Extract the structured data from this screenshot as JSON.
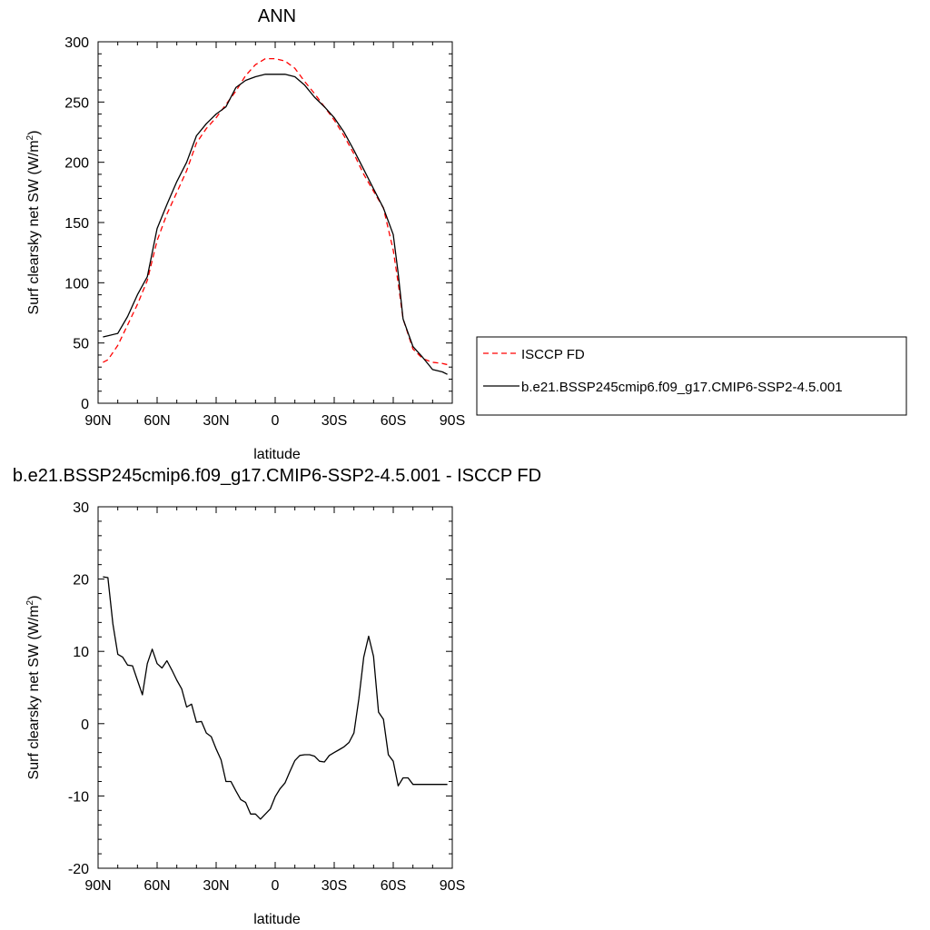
{
  "chart_data": [
    {
      "type": "line",
      "title": "ANN",
      "xlabel": "latitude",
      "ylabel": "Surf clearsky net SW (W/m",
      "ylabel_sup": "2",
      "ylabel_end": ")",
      "xlim": [
        90,
        -90
      ],
      "ylim": [
        0,
        300
      ],
      "x_ticks": [
        {
          "value": 90,
          "label": "90N"
        },
        {
          "value": 60,
          "label": "60N"
        },
        {
          "value": 30,
          "label": "30N"
        },
        {
          "value": 0,
          "label": "0"
        },
        {
          "value": -30,
          "label": "30S"
        },
        {
          "value": -60,
          "label": "60S"
        },
        {
          "value": -90,
          "label": "90S"
        }
      ],
      "y_ticks": [
        0,
        50,
        100,
        150,
        200,
        250,
        300
      ],
      "legend_position": "right",
      "series": [
        {
          "name": "ISCCP FD",
          "color": "#ff0000",
          "dash": "dashed",
          "x": [
            87.5,
            85,
            80,
            75,
            70,
            65,
            60,
            55,
            50,
            45,
            40,
            35,
            30,
            25,
            20,
            15,
            10,
            5,
            0,
            -5,
            -10,
            -15,
            -20,
            -25,
            -30,
            -35,
            -40,
            -45,
            -50,
            -55,
            -60,
            -62.5,
            -65,
            -70,
            -75,
            -80,
            -85,
            -87.5
          ],
          "y": [
            34,
            36,
            48,
            65,
            82,
            102,
            135,
            157,
            175,
            193,
            216,
            228,
            237,
            248,
            259,
            272,
            281,
            286,
            286,
            284,
            278,
            267,
            257,
            246,
            235,
            222,
            207,
            190,
            176,
            162,
            127,
            100,
            70,
            45,
            37,
            34,
            33,
            32
          ]
        },
        {
          "name": "b.e21.BSSP245cmip6.f09_g17.CMIP6-SSP2-4.5.001",
          "color": "#000000",
          "dash": "solid",
          "x": [
            87.5,
            85,
            80,
            75,
            70,
            65,
            60,
            55,
            50,
            45,
            40,
            35,
            30,
            25,
            20,
            15,
            10,
            5,
            0,
            -5,
            -10,
            -15,
            -20,
            -25,
            -30,
            -35,
            -40,
            -45,
            -50,
            -55,
            -60,
            -62.5,
            -65,
            -70,
            -75,
            -80,
            -85,
            -87.5
          ],
          "y": [
            55,
            56,
            58,
            72,
            90,
            105,
            145,
            165,
            184,
            200,
            222,
            232,
            240,
            246,
            262,
            268,
            271,
            273,
            273,
            273,
            271,
            264,
            254,
            246,
            237,
            225,
            210,
            194,
            178,
            162,
            140,
            108,
            70,
            47,
            38,
            28,
            26,
            24
          ]
        }
      ]
    },
    {
      "type": "line",
      "title": "b.e21.BSSP245cmip6.f09_g17.CMIP6-SSP2-4.5.001 - ISCCP FD",
      "xlabel": "latitude",
      "ylabel": "Surf clearsky net SW (W/m",
      "ylabel_sup": "2",
      "ylabel_end": ")",
      "xlim": [
        90,
        -90
      ],
      "ylim": [
        -20,
        30
      ],
      "x_ticks": [
        {
          "value": 90,
          "label": "90N"
        },
        {
          "value": 60,
          "label": "60N"
        },
        {
          "value": 30,
          "label": "30N"
        },
        {
          "value": 0,
          "label": "0"
        },
        {
          "value": -30,
          "label": "30S"
        },
        {
          "value": -60,
          "label": "60S"
        },
        {
          "value": -90,
          "label": "90S"
        }
      ],
      "y_ticks": [
        -20,
        -10,
        0,
        10,
        20,
        30
      ],
      "series": [
        {
          "color": "#000000",
          "dash": "solid",
          "x": [
            87.5,
            85,
            82.5,
            80,
            77.5,
            75,
            72.5,
            70,
            67.5,
            65,
            62.5,
            60,
            57.5,
            55,
            52.5,
            50,
            47.5,
            45,
            42.5,
            40,
            37.5,
            35,
            32.5,
            30,
            27.5,
            25,
            22.5,
            20,
            17.5,
            15,
            12.5,
            10,
            7.5,
            5,
            2.5,
            0,
            -2.5,
            -5,
            -7.5,
            -10,
            -12.5,
            -15,
            -17.5,
            -20,
            -22.5,
            -25,
            -27.5,
            -30,
            -32.5,
            -35,
            -37.5,
            -40,
            -42.5,
            -45,
            -47.5,
            -50,
            -52.5,
            -55,
            -57.5,
            -60,
            -62.5,
            -65,
            -67.5,
            -70,
            -72.5,
            -75,
            -77.5,
            -80,
            -82.5,
            -85,
            -87.5
          ],
          "y": [
            20.3,
            20.2,
            13.8,
            9.6,
            9.2,
            8.1,
            8.0,
            6.0,
            4.0,
            8.3,
            10.3,
            8.3,
            7.7,
            8.7,
            7.4,
            6.0,
            4.8,
            2.3,
            2.7,
            0.2,
            0.3,
            -1.3,
            -1.8,
            -3.5,
            -5.0,
            -8.0,
            -8.0,
            -9.3,
            -10.5,
            -10.9,
            -12.5,
            -12.5,
            -13.2,
            -12.5,
            -11.8,
            -10.1,
            -9.0,
            -8.2,
            -6.6,
            -5.1,
            -4.4,
            -4.3,
            -4.3,
            -4.5,
            -5.2,
            -5.3,
            -4.4,
            -4.0,
            -3.6,
            -3.2,
            -2.6,
            -1.3,
            3.4,
            9.2,
            12.1,
            9.3,
            1.6,
            0.6,
            -4.3,
            -5.2,
            -8.6,
            -7.5,
            -7.5,
            -8.4,
            -8.4,
            -8.4,
            -8.4,
            -8.4,
            -8.4,
            -8.4,
            -8.4
          ]
        }
      ]
    }
  ]
}
